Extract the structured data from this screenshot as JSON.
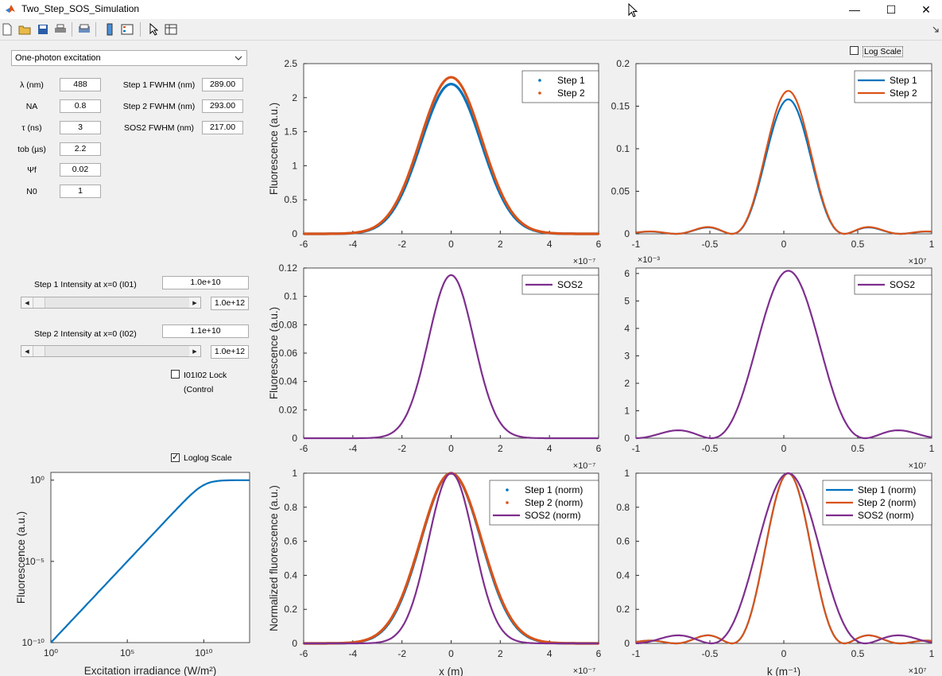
{
  "window": {
    "title": "Two_Step_SOS_Simulation",
    "minimize": "—",
    "maximize": "☐",
    "close": "✕"
  },
  "toolbar_icons": [
    "new-file-icon",
    "open-folder-icon",
    "save-icon",
    "print-icon",
    "print-preview-icon",
    "colorbar-icon",
    "legend-icon",
    "pointer-icon",
    "property-inspector-icon"
  ],
  "dropdown": {
    "selected": "One-photon excitation"
  },
  "params": [
    {
      "label": "λ (nm)",
      "value": "488"
    },
    {
      "label": "NA",
      "value": "0.8"
    },
    {
      "label": "τ (ns)",
      "value": "3"
    },
    {
      "label": "tob (µs)",
      "value": "2.2"
    },
    {
      "label": "Ψf",
      "value": "0.02"
    },
    {
      "label": "N0",
      "value": "1"
    }
  ],
  "fwhm": [
    {
      "label": "Step 1 FWHM (nm)",
      "value": "289.00"
    },
    {
      "label": "Step 2 FWHM (nm)",
      "value": "293.00"
    },
    {
      "label": "SOS2 FWHM (nm)",
      "value": "217.00"
    }
  ],
  "intensity1": {
    "label": "Step 1 Intensity at x=0 (I01)",
    "value": "1.0e+10",
    "max": "1.0e+12",
    "slider_fraction": 0.0
  },
  "intensity2": {
    "label": "Step 2 Intensity at x=0 (I02)",
    "value": "1.1e+10",
    "max": "1.0e+12",
    "slider_fraction": 0.0
  },
  "lock": {
    "label_line1": "I01I02 Lock",
    "label_line2": "(Control",
    "checked": false
  },
  "log_scale": {
    "label": "Log Scale",
    "checked": false
  },
  "loglog_scale": {
    "label": "Loglog Scale",
    "checked": true
  },
  "colors": {
    "blue": "#0072BD",
    "orange": "#D95319",
    "purple": "#7E2F8E"
  },
  "chart_data": [
    {
      "type": "line",
      "id": "p1",
      "ylabel": "Fluorescence (a.u.)",
      "xlabel": "",
      "xlim": [
        -6e-07,
        6e-07
      ],
      "ylim": [
        0,
        2.5
      ],
      "xticks": [
        "-6",
        "-4",
        "-2",
        "0",
        "2",
        "4",
        "6"
      ],
      "yticks": [
        "0",
        "0.5",
        "1",
        "1.5",
        "2",
        "2.5"
      ],
      "xexp": "×10⁻⁷",
      "yexp": "",
      "series": [
        {
          "name": "Step 1",
          "peak": 2.2,
          "fwhm_nm": 289,
          "style": "dot"
        },
        {
          "name": "Step 2",
          "peak": 2.3,
          "fwhm_nm": 293,
          "style": "dot"
        }
      ]
    },
    {
      "type": "line",
      "id": "p2",
      "ylabel": "",
      "xlabel": "",
      "xlim": [
        -10000000.0,
        10000000.0
      ],
      "ylim": [
        0,
        0.2
      ],
      "xticks": [
        "-1",
        "-0.5",
        "0",
        "0.5",
        "1"
      ],
      "yticks": [
        "0",
        "0.05",
        "0.1",
        "0.15",
        "0.2"
      ],
      "xexp": "×10⁷",
      "yexp": "",
      "series": [
        {
          "name": "Step 1",
          "peak": 0.158,
          "style": "line"
        },
        {
          "name": "Step 2",
          "peak": 0.168,
          "style": "line"
        }
      ]
    },
    {
      "type": "line",
      "id": "p3",
      "ylabel": "Fluorescence (a.u.)",
      "xlabel": "",
      "xlim": [
        -6e-07,
        6e-07
      ],
      "ylim": [
        0,
        0.12
      ],
      "xticks": [
        "-6",
        "-4",
        "-2",
        "0",
        "2",
        "4",
        "6"
      ],
      "yticks": [
        "0",
        "0.02",
        "0.04",
        "0.06",
        "0.08",
        "0.1",
        "0.12"
      ],
      "xexp": "×10⁻⁷",
      "yexp": "",
      "series": [
        {
          "name": "SOS2",
          "peak": 0.115,
          "fwhm_nm": 217,
          "style": "line"
        }
      ]
    },
    {
      "type": "line",
      "id": "p4",
      "ylabel": "",
      "xlabel": "",
      "xlim": [
        -10000000.0,
        10000000.0
      ],
      "ylim": [
        0,
        0.0062
      ],
      "xticks": [
        "-1",
        "-0.5",
        "0",
        "0.5",
        "1"
      ],
      "yticks": [
        "0",
        "1",
        "2",
        "3",
        "4",
        "5",
        "6"
      ],
      "xexp": "×10⁷",
      "yexp": "×10⁻³",
      "series": [
        {
          "name": "SOS2",
          "peak": 0.0061,
          "style": "line"
        }
      ]
    },
    {
      "type": "line",
      "id": "p5",
      "ylabel": "Normalized fluorescence (a.u.)",
      "xlabel": "x (m)",
      "xlim": [
        -6e-07,
        6e-07
      ],
      "ylim": [
        0,
        1
      ],
      "xticks": [
        "-6",
        "-4",
        "-2",
        "0",
        "2",
        "4",
        "6"
      ],
      "yticks": [
        "0",
        "0.2",
        "0.4",
        "0.6",
        "0.8",
        "1"
      ],
      "xexp": "×10⁻⁷",
      "yexp": "",
      "series": [
        {
          "name": "Step 1 (norm)",
          "peak": 1,
          "fwhm_nm": 289,
          "style": "dot"
        },
        {
          "name": "Step 2 (norm)",
          "peak": 1,
          "fwhm_nm": 293,
          "style": "dot"
        },
        {
          "name": "SOS2 (norm)",
          "peak": 1,
          "fwhm_nm": 217,
          "style": "line"
        }
      ]
    },
    {
      "type": "line",
      "id": "p6",
      "ylabel": "",
      "xlabel": "k (m⁻¹)",
      "xlim": [
        -10000000.0,
        10000000.0
      ],
      "ylim": [
        0,
        1
      ],
      "xticks": [
        "-1",
        "-0.5",
        "0",
        "0.5",
        "1"
      ],
      "yticks": [
        "0",
        "0.2",
        "0.4",
        "0.6",
        "0.8",
        "1"
      ],
      "xexp": "×10⁷",
      "yexp": "",
      "series": [
        {
          "name": "Step 1 (norm)",
          "peak": 1,
          "style": "line"
        },
        {
          "name": "Step 2 (norm)",
          "peak": 1,
          "style": "line"
        },
        {
          "name": "SOS2 (norm)",
          "peak": 1,
          "style": "line"
        }
      ]
    },
    {
      "type": "line",
      "id": "p7",
      "ylabel": "Fluorescence (a.u.)",
      "xlabel": "Excitation irradiance (W/m²)",
      "xscale": "log",
      "yscale": "log",
      "xlim": [
        1,
        10000000000000.0
      ],
      "ylim": [
        1e-10,
        3
      ],
      "xticks": [
        "10⁰",
        "10⁵",
        "10¹⁰"
      ],
      "yticks": [
        "10⁻¹⁰",
        "10⁻⁵",
        "10⁰"
      ],
      "series": [
        {
          "name": "",
          "style": "line",
          "saturation": 10000000000.0
        }
      ]
    }
  ]
}
